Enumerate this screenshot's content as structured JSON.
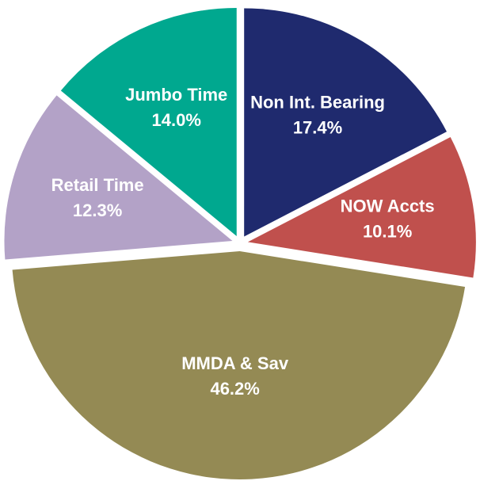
{
  "chart_data": {
    "type": "pie",
    "categories": [
      "Non Int. Bearing",
      "NOW Accts",
      "MMDA & Sav",
      "Retail Time",
      "Jumbo Time"
    ],
    "values": [
      17.4,
      10.1,
      46.2,
      12.3,
      14.0
    ],
    "value_labels": [
      "17.4%",
      "10.1%",
      "46.2%",
      "12.3%",
      "14.0%"
    ],
    "colors": [
      "#1f2a6e",
      "#c0504d",
      "#948a54",
      "#b3a2c7",
      "#00a88f"
    ]
  }
}
